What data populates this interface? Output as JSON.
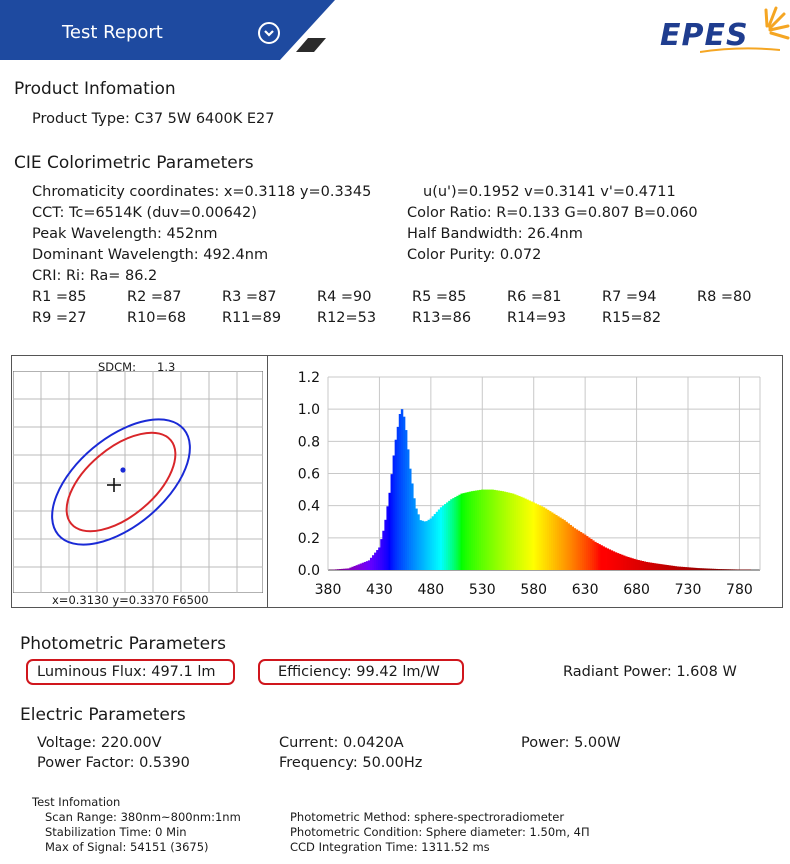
{
  "header": {
    "title": "Test Report",
    "logo": "EPES"
  },
  "product": {
    "section_title": "Product Infomation",
    "type": "Product Type: C37 5W 6400K E27"
  },
  "cie": {
    "section_title": "CIE Colorimetric Parameters",
    "chromaticity": "Chromaticity coordinates: x=0.3118 y=0.3345",
    "uv": "u(u')=0.1952 v=0.3141 v'=0.4711",
    "cct": "CCT: Tc=6514K (duv=0.00642)",
    "color_ratio": "Color Ratio: R=0.133  G=0.807  B=0.060",
    "peak_wavelength": "Peak Wavelength: 452nm",
    "half_bandwidth": "Half Bandwidth: 26.4nm",
    "dominant_wavelength": "Dominant Wavelength: 492.4nm",
    "color_purity": "Color Purity: 0.072",
    "cri": "CRI: Ri: Ra= 86.2",
    "r_values_row1": [
      "R1 =85",
      "R2 =87",
      "R3 =87",
      "R4 =90",
      "R5 =85",
      "R6 =81",
      "R7 =94",
      "R8 =80"
    ],
    "r_values_row2": [
      "R9 =27",
      "R10=68",
      "R11=89",
      "R12=53",
      "R13=86",
      "R14=93",
      "R15=82"
    ]
  },
  "sdcm_panel": {
    "sdcm_label": "SDCM:",
    "sdcm_value": "1.3",
    "footer": "x=0.3130 y=0.3370 F6500"
  },
  "chart_data": {
    "type": "area",
    "title": "",
    "xlabel": "",
    "ylabel": "",
    "xlim": [
      380,
      800
    ],
    "ylim": [
      0,
      1.2
    ],
    "x_ticks": [
      "380",
      "430",
      "480",
      "530",
      "580",
      "630",
      "680",
      "730",
      "780"
    ],
    "y_ticks": [
      "0.0",
      "0.2",
      "0.4",
      "0.6",
      "0.8",
      "1.0",
      "1.2"
    ],
    "grid": true,
    "series": [
      {
        "x": [
          380,
          400,
          420,
          430,
          435,
          440,
          445,
          450,
          452,
          455,
          460,
          465,
          470,
          475,
          480,
          490,
          500,
          510,
          520,
          530,
          540,
          550,
          560,
          570,
          580,
          590,
          600,
          610,
          620,
          630,
          640,
          650,
          660,
          670,
          680,
          690,
          700,
          720,
          740,
          760,
          780
        ],
        "values": [
          0.0,
          0.01,
          0.06,
          0.14,
          0.27,
          0.48,
          0.77,
          0.97,
          1.0,
          0.93,
          0.63,
          0.4,
          0.31,
          0.3,
          0.32,
          0.39,
          0.44,
          0.475,
          0.49,
          0.5,
          0.5,
          0.49,
          0.475,
          0.45,
          0.42,
          0.39,
          0.35,
          0.31,
          0.26,
          0.22,
          0.175,
          0.14,
          0.11,
          0.085,
          0.065,
          0.05,
          0.04,
          0.022,
          0.012,
          0.006,
          0.003
        ]
      }
    ]
  },
  "photometric": {
    "section_title": "Photometric Parameters",
    "luminous_flux": "Luminous Flux: 497.1 lm",
    "efficiency": "Efficiency: 99.42 lm/W",
    "radiant_power": "Radiant Power: 1.608 W"
  },
  "electric": {
    "section_title": "Electric Parameters",
    "voltage": "Voltage: 220.00V",
    "current": "Current: 0.0420A",
    "power": "Power: 5.00W",
    "power_factor": "Power Factor: 0.5390",
    "frequency": "Frequency: 50.00Hz"
  },
  "test_info": {
    "title": "Test Infomation",
    "scan_range": "Scan Range: 380nm~800nm:1nm",
    "stabilization": "Stabilization Time: 0 Min",
    "max_signal": "Max of Signal: 54151 (3675)",
    "method": "Photometric Method: sphere-spectroradiometer",
    "condition": "Photometric Condition: Sphere diameter: 1.50m, 4Π",
    "ccd_time": "CCD Integration Time: 1311.52 ms"
  },
  "colors": {
    "header_blue": "#1e4aa0",
    "logo_blue": "#1f3d8f",
    "logo_sun": "#f5a623",
    "highlight_red": "#d0161d",
    "ellipse_outer": "#1a2ad6",
    "ellipse_inner": "#d9262a"
  }
}
